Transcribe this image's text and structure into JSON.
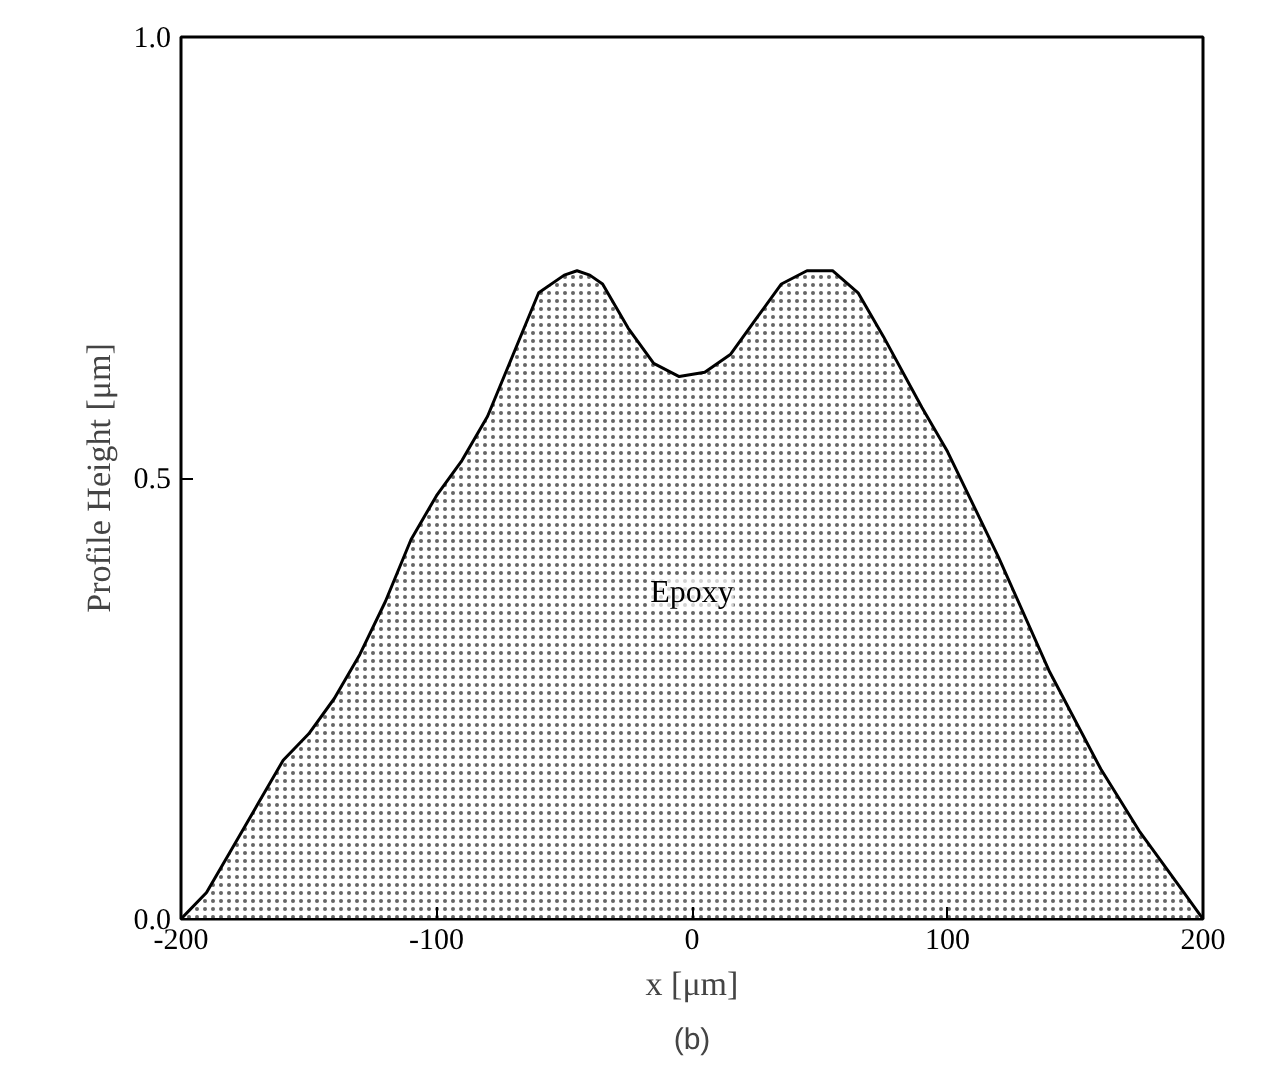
{
  "chart_data": {
    "type": "area",
    "xlabel": "x [μm]",
    "ylabel": "Profile Height [μm]",
    "x": [
      -200,
      -190,
      -180,
      -170,
      -160,
      -150,
      -140,
      -130,
      -120,
      -110,
      -100,
      -90,
      -80,
      -70,
      -60,
      -50,
      -45,
      -40,
      -35,
      -25,
      -15,
      -5,
      5,
      15,
      25,
      35,
      45,
      55,
      65,
      75,
      90,
      100,
      120,
      140,
      160,
      175,
      190,
      200
    ],
    "series": [
      {
        "color": "#000000",
        "values": [
          0.0,
          0.03,
          0.08,
          0.13,
          0.18,
          0.21,
          0.25,
          0.3,
          0.36,
          0.43,
          0.48,
          0.52,
          0.57,
          0.64,
          0.71,
          0.73,
          0.735,
          0.73,
          0.72,
          0.67,
          0.63,
          0.615,
          0.62,
          0.64,
          0.68,
          0.72,
          0.735,
          0.735,
          0.71,
          0.66,
          0.58,
          0.53,
          0.41,
          0.28,
          0.17,
          0.1,
          0.04,
          0.0
        ]
      }
    ],
    "xlim": [
      -200,
      200
    ],
    "ylim": [
      0,
      1
    ],
    "xticks": [
      -200,
      -100,
      0,
      100,
      200
    ],
    "yticks": [
      {
        "value": 0,
        "label": "0.0"
      },
      {
        "value": 0.5,
        "label": "0.5"
      },
      {
        "value": 1,
        "label": "1.0"
      }
    ],
    "annotations": [
      "Epoxy",
      "(b)"
    ],
    "grid": false
  }
}
